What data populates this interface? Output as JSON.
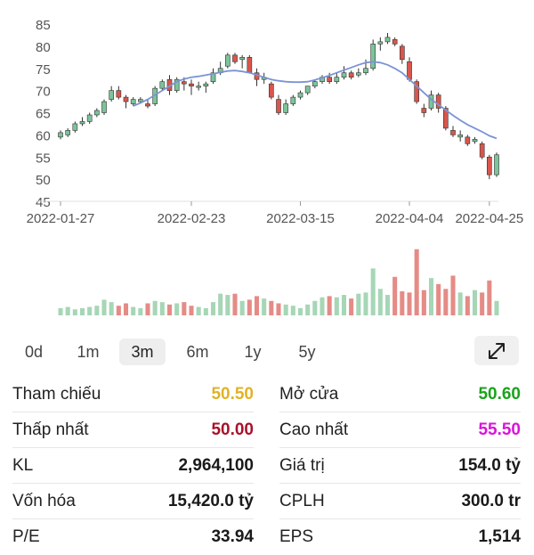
{
  "chart_data": {
    "type": "candlestick",
    "y_ticks": [
      85,
      80,
      75,
      70,
      65,
      60,
      55,
      50,
      45
    ],
    "ylim": [
      45,
      86
    ],
    "x_labels": [
      "2022-01-27",
      "2022-02-23",
      "2022-03-15",
      "2022-04-04",
      "2022-04-25"
    ],
    "ohlc": [
      [
        59.5,
        61,
        59,
        60.5
      ],
      [
        60,
        61.5,
        59.5,
        61
      ],
      [
        61,
        63,
        60.5,
        62.5
      ],
      [
        62.5,
        64,
        62,
        63
      ],
      [
        63,
        65,
        62.5,
        64.5
      ],
      [
        64.5,
        66,
        64,
        65.5
      ],
      [
        65,
        68,
        64.5,
        67.5
      ],
      [
        68,
        71,
        67.5,
        70
      ],
      [
        70,
        71,
        68,
        68.5
      ],
      [
        68.5,
        69,
        66,
        67.5
      ],
      [
        67,
        68.5,
        66.5,
        68
      ],
      [
        67.5,
        68.5,
        67,
        68
      ],
      [
        67,
        68,
        66,
        66.5
      ],
      [
        67,
        71,
        66.5,
        70.5
      ],
      [
        70.5,
        72.5,
        70,
        72
      ],
      [
        72.5,
        73.5,
        69,
        70
      ],
      [
        70,
        73,
        69.5,
        72.5
      ],
      [
        72,
        73,
        70,
        71.5
      ],
      [
        71.5,
        72.5,
        69,
        71
      ],
      [
        71,
        72,
        70,
        71
      ],
      [
        71,
        72,
        69.5,
        71.5
      ],
      [
        72,
        75,
        71.5,
        74
      ],
      [
        74,
        76.5,
        73.5,
        75
      ],
      [
        75.5,
        78.5,
        75,
        78
      ],
      [
        78,
        78.5,
        76,
        76.5
      ],
      [
        77,
        78,
        75,
        77.5
      ],
      [
        77.5,
        78,
        74,
        74
      ],
      [
        74,
        75,
        71,
        72.5
      ],
      [
        72.5,
        74,
        71.5,
        73
      ],
      [
        71.5,
        72,
        68,
        68.5
      ],
      [
        68,
        69,
        64.5,
        65
      ],
      [
        65,
        68,
        64.5,
        67
      ],
      [
        67,
        69,
        66.5,
        68.5
      ],
      [
        68.5,
        70,
        68,
        69.5
      ],
      [
        69.5,
        71,
        69,
        71
      ],
      [
        71,
        72.5,
        70.5,
        72
      ],
      [
        72,
        73.5,
        71.5,
        73
      ],
      [
        73,
        74,
        71.5,
        72
      ],
      [
        72,
        74,
        71.5,
        73
      ],
      [
        73,
        75.5,
        72.5,
        74
      ],
      [
        74,
        74.5,
        72.5,
        73
      ],
      [
        73.5,
        75,
        73,
        74
      ],
      [
        74,
        77,
        73.5,
        75
      ],
      [
        75,
        81.5,
        74.5,
        80.5
      ],
      [
        80.5,
        82,
        79,
        81
      ],
      [
        81,
        83,
        80.5,
        82
      ],
      [
        81.5,
        82,
        80,
        80.5
      ],
      [
        80,
        80.5,
        76,
        77
      ],
      [
        76.5,
        77.5,
        72,
        72.5
      ],
      [
        72,
        72.5,
        67,
        67.5
      ],
      [
        66,
        67,
        64,
        65
      ],
      [
        66,
        70,
        65.5,
        69
      ],
      [
        69,
        69.5,
        65,
        66
      ],
      [
        66,
        66.5,
        61,
        61.5
      ],
      [
        61,
        62,
        59.5,
        60
      ],
      [
        59.5,
        61,
        58.5,
        60
      ],
      [
        59.5,
        60,
        57.5,
        58
      ],
      [
        58.5,
        59.5,
        58,
        59
      ],
      [
        58,
        58.5,
        54.5,
        55
      ],
      [
        55,
        55.5,
        50,
        51
      ],
      [
        51,
        56,
        50.5,
        55.5
      ]
    ],
    "ma_line": [
      66.5,
      67.2,
      68,
      69,
      70,
      71,
      72,
      72.6,
      73,
      73.2,
      73.5,
      73.8,
      74.1,
      74.4,
      74.5,
      74.3,
      74,
      73.5,
      73,
      72.5,
      72.2,
      72,
      71.9,
      71.9,
      72,
      72.4,
      72.9,
      73.4,
      74,
      74.6,
      75.2,
      75.8,
      76.3,
      76.5,
      76.3,
      75.8,
      75,
      74,
      72.5,
      71,
      69.5,
      68,
      66.8,
      65.6,
      64.4,
      63.3,
      62.3,
      61.5,
      60.7,
      59.8,
      59.2
    ],
    "ma_start_index": 10,
    "volume": [
      0.3,
      0.35,
      0.25,
      0.3,
      0.35,
      0.4,
      0.65,
      0.55,
      0.4,
      0.5,
      0.35,
      0.3,
      0.5,
      0.6,
      0.55,
      0.45,
      0.5,
      0.55,
      0.4,
      0.35,
      0.3,
      0.55,
      0.9,
      0.85,
      0.9,
      0.6,
      0.65,
      0.8,
      0.7,
      0.6,
      0.5,
      0.45,
      0.4,
      0.3,
      0.45,
      0.6,
      0.75,
      0.8,
      0.75,
      0.85,
      0.7,
      0.9,
      0.95,
      1.95,
      1.1,
      0.85,
      1.6,
      1.0,
      0.95,
      2.75,
      1.05,
      1.55,
      1.3,
      1.1,
      1.65,
      0.95,
      0.8,
      1.05,
      0.95,
      1.45,
      0.6
    ],
    "colors": {
      "up": "#7cc49a",
      "down": "#d9564c",
      "ma": "#7b93d6",
      "up_vol": "#a6d6b6",
      "down_vol": "#e58b86"
    }
  },
  "tabs": [
    "0d",
    "1m",
    "3m",
    "6m",
    "1y",
    "5y"
  ],
  "active_tab": "3m",
  "expand_icon": "expand-arrows-icon",
  "stats": {
    "ref_label": "Tham chiếu",
    "ref_value": "50.50",
    "ref_color": "#e0b326",
    "open_label": "Mở cửa",
    "open_value": "50.60",
    "open_color": "#1aa31a",
    "low_label": "Thấp nhất",
    "low_value": "50.00",
    "low_color": "#a8112a",
    "high_label": "Cao nhất",
    "high_value": "55.50",
    "high_color": "#d914d9",
    "vol_label": "KL",
    "vol_value": "2,964,100",
    "value_label": "Giá trị",
    "value_value": "154.0 tỷ",
    "cap_label": "Vốn hóa",
    "cap_value": "15,420.0 tỷ",
    "shares_label": "CPLH",
    "shares_value": "300.0 tr",
    "pe_label": "P/E",
    "pe_value": "33.94",
    "eps_label": "EPS",
    "eps_value": "1,514"
  }
}
